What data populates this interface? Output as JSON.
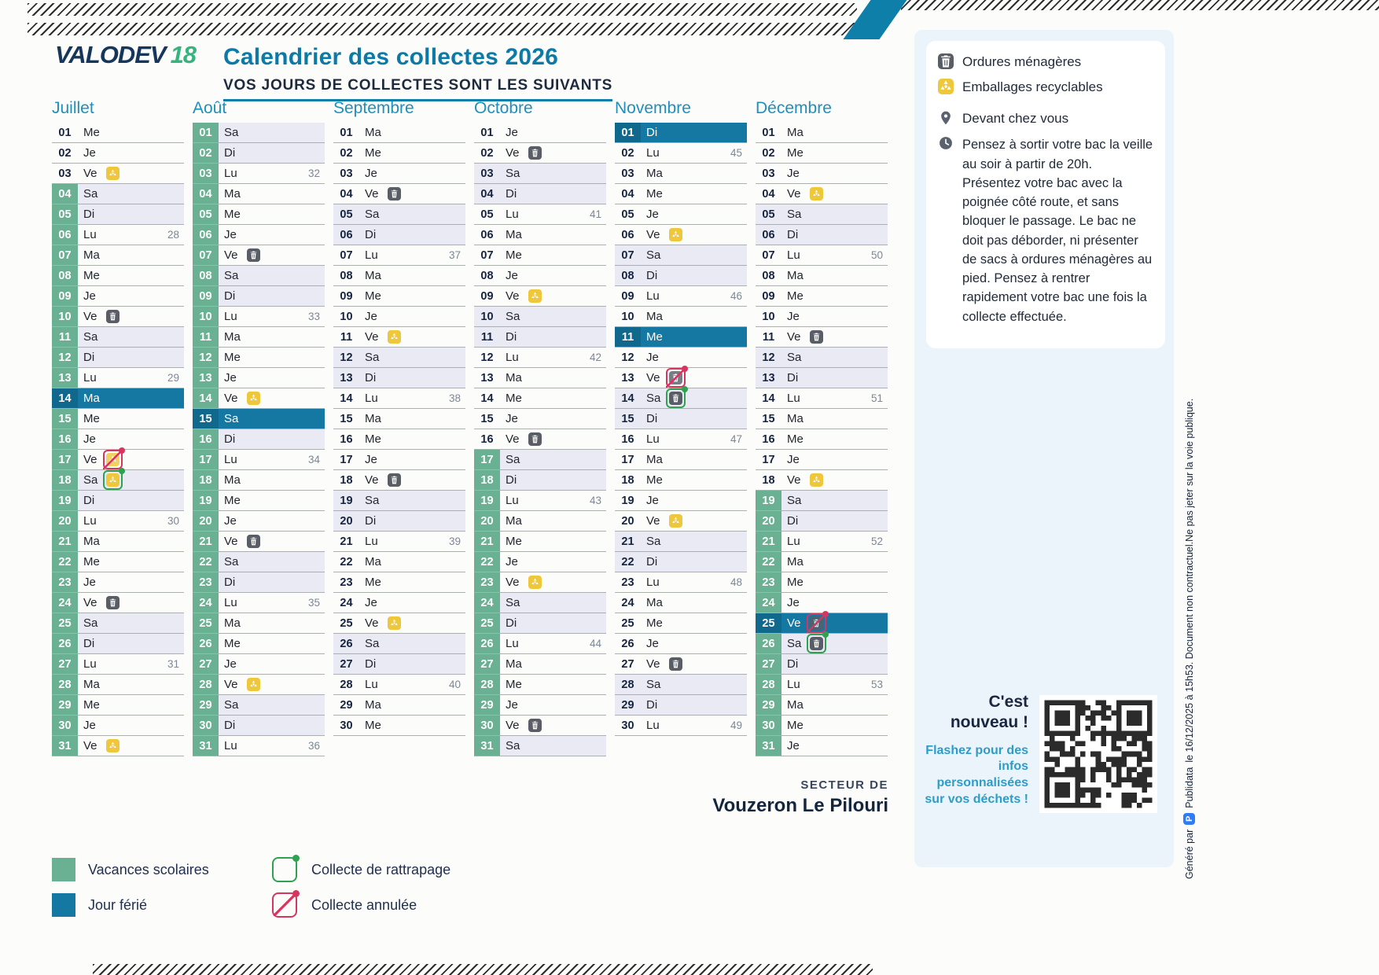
{
  "header": {
    "logo": "VALODEV",
    "logo_number": "18",
    "title": "Calendrier des collectes 2026",
    "subtitle": "VOS JOURS DE COLLECTES SONT LES SUIVANTS"
  },
  "months": [
    {
      "name": "Juillet",
      "days": [
        {
          "d": "01",
          "w": "Me"
        },
        {
          "d": "02",
          "w": "Je"
        },
        {
          "d": "03",
          "w": "Ve",
          "i": "er"
        },
        {
          "d": "04",
          "w": "Sa",
          "t": "v"
        },
        {
          "d": "05",
          "w": "Di",
          "t": "v"
        },
        {
          "d": "06",
          "w": "Lu",
          "t": "v",
          "k": "28"
        },
        {
          "d": "07",
          "w": "Ma",
          "t": "v"
        },
        {
          "d": "08",
          "w": "Me",
          "t": "v"
        },
        {
          "d": "09",
          "w": "Je",
          "t": "v"
        },
        {
          "d": "10",
          "w": "Ve",
          "t": "v",
          "i": "om"
        },
        {
          "d": "11",
          "w": "Sa",
          "t": "v"
        },
        {
          "d": "12",
          "w": "Di",
          "t": "v"
        },
        {
          "d": "13",
          "w": "Lu",
          "t": "v",
          "k": "29"
        },
        {
          "d": "14",
          "w": "Ma",
          "t": "f"
        },
        {
          "d": "15",
          "w": "Me",
          "t": "v"
        },
        {
          "d": "16",
          "w": "Je",
          "t": "v"
        },
        {
          "d": "17",
          "w": "Ve",
          "t": "v",
          "i": "er-x"
        },
        {
          "d": "18",
          "w": "Sa",
          "t": "v",
          "i": "er-r"
        },
        {
          "d": "19",
          "w": "Di",
          "t": "v"
        },
        {
          "d": "20",
          "w": "Lu",
          "t": "v",
          "k": "30"
        },
        {
          "d": "21",
          "w": "Ma",
          "t": "v"
        },
        {
          "d": "22",
          "w": "Me",
          "t": "v"
        },
        {
          "d": "23",
          "w": "Je",
          "t": "v"
        },
        {
          "d": "24",
          "w": "Ve",
          "t": "v",
          "i": "om"
        },
        {
          "d": "25",
          "w": "Sa",
          "t": "v"
        },
        {
          "d": "26",
          "w": "Di",
          "t": "v"
        },
        {
          "d": "27",
          "w": "Lu",
          "t": "v",
          "k": "31"
        },
        {
          "d": "28",
          "w": "Ma",
          "t": "v"
        },
        {
          "d": "29",
          "w": "Me",
          "t": "v"
        },
        {
          "d": "30",
          "w": "Je",
          "t": "v"
        },
        {
          "d": "31",
          "w": "Ve",
          "t": "v",
          "i": "er"
        }
      ]
    },
    {
      "name": "Août",
      "days": [
        {
          "d": "01",
          "w": "Sa",
          "t": "v"
        },
        {
          "d": "02",
          "w": "Di",
          "t": "v"
        },
        {
          "d": "03",
          "w": "Lu",
          "t": "v",
          "k": "32"
        },
        {
          "d": "04",
          "w": "Ma",
          "t": "v"
        },
        {
          "d": "05",
          "w": "Me",
          "t": "v"
        },
        {
          "d": "06",
          "w": "Je",
          "t": "v"
        },
        {
          "d": "07",
          "w": "Ve",
          "t": "v",
          "i": "om"
        },
        {
          "d": "08",
          "w": "Sa",
          "t": "v"
        },
        {
          "d": "09",
          "w": "Di",
          "t": "v"
        },
        {
          "d": "10",
          "w": "Lu",
          "t": "v",
          "k": "33"
        },
        {
          "d": "11",
          "w": "Ma",
          "t": "v"
        },
        {
          "d": "12",
          "w": "Me",
          "t": "v"
        },
        {
          "d": "13",
          "w": "Je",
          "t": "v"
        },
        {
          "d": "14",
          "w": "Ve",
          "t": "v",
          "i": "er"
        },
        {
          "d": "15",
          "w": "Sa",
          "t": "f"
        },
        {
          "d": "16",
          "w": "Di",
          "t": "v"
        },
        {
          "d": "17",
          "w": "Lu",
          "t": "v",
          "k": "34"
        },
        {
          "d": "18",
          "w": "Ma",
          "t": "v"
        },
        {
          "d": "19",
          "w": "Me",
          "t": "v"
        },
        {
          "d": "20",
          "w": "Je",
          "t": "v"
        },
        {
          "d": "21",
          "w": "Ve",
          "t": "v",
          "i": "om"
        },
        {
          "d": "22",
          "w": "Sa",
          "t": "v"
        },
        {
          "d": "23",
          "w": "Di",
          "t": "v"
        },
        {
          "d": "24",
          "w": "Lu",
          "t": "v",
          "k": "35"
        },
        {
          "d": "25",
          "w": "Ma",
          "t": "v"
        },
        {
          "d": "26",
          "w": "Me",
          "t": "v"
        },
        {
          "d": "27",
          "w": "Je",
          "t": "v"
        },
        {
          "d": "28",
          "w": "Ve",
          "t": "v",
          "i": "er"
        },
        {
          "d": "29",
          "w": "Sa",
          "t": "v"
        },
        {
          "d": "30",
          "w": "Di",
          "t": "v"
        },
        {
          "d": "31",
          "w": "Lu",
          "t": "v",
          "k": "36"
        }
      ]
    },
    {
      "name": "Septembre",
      "days": [
        {
          "d": "01",
          "w": "Ma"
        },
        {
          "d": "02",
          "w": "Me"
        },
        {
          "d": "03",
          "w": "Je"
        },
        {
          "d": "04",
          "w": "Ve",
          "i": "om"
        },
        {
          "d": "05",
          "w": "Sa"
        },
        {
          "d": "06",
          "w": "Di"
        },
        {
          "d": "07",
          "w": "Lu",
          "k": "37"
        },
        {
          "d": "08",
          "w": "Ma"
        },
        {
          "d": "09",
          "w": "Me"
        },
        {
          "d": "10",
          "w": "Je"
        },
        {
          "d": "11",
          "w": "Ve",
          "i": "er"
        },
        {
          "d": "12",
          "w": "Sa"
        },
        {
          "d": "13",
          "w": "Di"
        },
        {
          "d": "14",
          "w": "Lu",
          "k": "38"
        },
        {
          "d": "15",
          "w": "Ma"
        },
        {
          "d": "16",
          "w": "Me"
        },
        {
          "d": "17",
          "w": "Je"
        },
        {
          "d": "18",
          "w": "Ve",
          "i": "om"
        },
        {
          "d": "19",
          "w": "Sa"
        },
        {
          "d": "20",
          "w": "Di"
        },
        {
          "d": "21",
          "w": "Lu",
          "k": "39"
        },
        {
          "d": "22",
          "w": "Ma"
        },
        {
          "d": "23",
          "w": "Me"
        },
        {
          "d": "24",
          "w": "Je"
        },
        {
          "d": "25",
          "w": "Ve",
          "i": "er"
        },
        {
          "d": "26",
          "w": "Sa"
        },
        {
          "d": "27",
          "w": "Di"
        },
        {
          "d": "28",
          "w": "Lu",
          "k": "40"
        },
        {
          "d": "29",
          "w": "Ma"
        },
        {
          "d": "30",
          "w": "Me"
        }
      ]
    },
    {
      "name": "Octobre",
      "days": [
        {
          "d": "01",
          "w": "Je"
        },
        {
          "d": "02",
          "w": "Ve",
          "i": "om"
        },
        {
          "d": "03",
          "w": "Sa"
        },
        {
          "d": "04",
          "w": "Di"
        },
        {
          "d": "05",
          "w": "Lu",
          "k": "41"
        },
        {
          "d": "06",
          "w": "Ma"
        },
        {
          "d": "07",
          "w": "Me"
        },
        {
          "d": "08",
          "w": "Je"
        },
        {
          "d": "09",
          "w": "Ve",
          "i": "er"
        },
        {
          "d": "10",
          "w": "Sa"
        },
        {
          "d": "11",
          "w": "Di"
        },
        {
          "d": "12",
          "w": "Lu",
          "k": "42"
        },
        {
          "d": "13",
          "w": "Ma"
        },
        {
          "d": "14",
          "w": "Me"
        },
        {
          "d": "15",
          "w": "Je"
        },
        {
          "d": "16",
          "w": "Ve",
          "i": "om"
        },
        {
          "d": "17",
          "w": "Sa",
          "t": "v"
        },
        {
          "d": "18",
          "w": "Di",
          "t": "v"
        },
        {
          "d": "19",
          "w": "Lu",
          "t": "v",
          "k": "43"
        },
        {
          "d": "20",
          "w": "Ma",
          "t": "v"
        },
        {
          "d": "21",
          "w": "Me",
          "t": "v"
        },
        {
          "d": "22",
          "w": "Je",
          "t": "v"
        },
        {
          "d": "23",
          "w": "Ve",
          "t": "v",
          "i": "er"
        },
        {
          "d": "24",
          "w": "Sa",
          "t": "v"
        },
        {
          "d": "25",
          "w": "Di",
          "t": "v"
        },
        {
          "d": "26",
          "w": "Lu",
          "t": "v",
          "k": "44"
        },
        {
          "d": "27",
          "w": "Ma",
          "t": "v"
        },
        {
          "d": "28",
          "w": "Me",
          "t": "v"
        },
        {
          "d": "29",
          "w": "Je",
          "t": "v"
        },
        {
          "d": "30",
          "w": "Ve",
          "t": "v",
          "i": "om"
        },
        {
          "d": "31",
          "w": "Sa",
          "t": "v"
        }
      ]
    },
    {
      "name": "Novembre",
      "days": [
        {
          "d": "01",
          "w": "Di",
          "t": "f"
        },
        {
          "d": "02",
          "w": "Lu",
          "k": "45"
        },
        {
          "d": "03",
          "w": "Ma"
        },
        {
          "d": "04",
          "w": "Me"
        },
        {
          "d": "05",
          "w": "Je"
        },
        {
          "d": "06",
          "w": "Ve",
          "i": "er"
        },
        {
          "d": "07",
          "w": "Sa"
        },
        {
          "d": "08",
          "w": "Di"
        },
        {
          "d": "09",
          "w": "Lu",
          "k": "46"
        },
        {
          "d": "10",
          "w": "Ma"
        },
        {
          "d": "11",
          "w": "Me",
          "t": "f"
        },
        {
          "d": "12",
          "w": "Je"
        },
        {
          "d": "13",
          "w": "Ve",
          "i": "om-x"
        },
        {
          "d": "14",
          "w": "Sa",
          "i": "om-r"
        },
        {
          "d": "15",
          "w": "Di"
        },
        {
          "d": "16",
          "w": "Lu",
          "k": "47"
        },
        {
          "d": "17",
          "w": "Ma"
        },
        {
          "d": "18",
          "w": "Me"
        },
        {
          "d": "19",
          "w": "Je"
        },
        {
          "d": "20",
          "w": "Ve",
          "i": "er"
        },
        {
          "d": "21",
          "w": "Sa"
        },
        {
          "d": "22",
          "w": "Di"
        },
        {
          "d": "23",
          "w": "Lu",
          "k": "48"
        },
        {
          "d": "24",
          "w": "Ma"
        },
        {
          "d": "25",
          "w": "Me"
        },
        {
          "d": "26",
          "w": "Je"
        },
        {
          "d": "27",
          "w": "Ve",
          "i": "om"
        },
        {
          "d": "28",
          "w": "Sa"
        },
        {
          "d": "29",
          "w": "Di"
        },
        {
          "d": "30",
          "w": "Lu",
          "k": "49"
        }
      ]
    },
    {
      "name": "Décembre",
      "days": [
        {
          "d": "01",
          "w": "Ma"
        },
        {
          "d": "02",
          "w": "Me"
        },
        {
          "d": "03",
          "w": "Je"
        },
        {
          "d": "04",
          "w": "Ve",
          "i": "er"
        },
        {
          "d": "05",
          "w": "Sa"
        },
        {
          "d": "06",
          "w": "Di"
        },
        {
          "d": "07",
          "w": "Lu",
          "k": "50"
        },
        {
          "d": "08",
          "w": "Ma"
        },
        {
          "d": "09",
          "w": "Me"
        },
        {
          "d": "10",
          "w": "Je"
        },
        {
          "d": "11",
          "w": "Ve",
          "i": "om"
        },
        {
          "d": "12",
          "w": "Sa"
        },
        {
          "d": "13",
          "w": "Di"
        },
        {
          "d": "14",
          "w": "Lu",
          "k": "51"
        },
        {
          "d": "15",
          "w": "Ma"
        },
        {
          "d": "16",
          "w": "Me"
        },
        {
          "d": "17",
          "w": "Je"
        },
        {
          "d": "18",
          "w": "Ve",
          "i": "er"
        },
        {
          "d": "19",
          "w": "Sa",
          "t": "v"
        },
        {
          "d": "20",
          "w": "Di",
          "t": "v"
        },
        {
          "d": "21",
          "w": "Lu",
          "t": "v",
          "k": "52"
        },
        {
          "d": "22",
          "w": "Ma",
          "t": "v"
        },
        {
          "d": "23",
          "w": "Me",
          "t": "v"
        },
        {
          "d": "24",
          "w": "Je",
          "t": "v"
        },
        {
          "d": "25",
          "w": "Ve",
          "t": "f",
          "i": "om-x"
        },
        {
          "d": "26",
          "w": "Sa",
          "t": "v",
          "i": "om-r"
        },
        {
          "d": "27",
          "w": "Di",
          "t": "v"
        },
        {
          "d": "28",
          "w": "Lu",
          "t": "v",
          "k": "53"
        },
        {
          "d": "29",
          "w": "Ma",
          "t": "v"
        },
        {
          "d": "30",
          "w": "Me",
          "t": "v"
        },
        {
          "d": "31",
          "w": "Je",
          "t": "v"
        }
      ]
    }
  ],
  "legend": {
    "items": [
      {
        "type": "vacances",
        "label": "Vacances scolaires"
      },
      {
        "type": "rattrapage",
        "label": "Collecte de rattrapage"
      },
      {
        "type": "ferie",
        "label": "Jour férié"
      },
      {
        "type": "annulee",
        "label": "Collecte annulée"
      }
    ]
  },
  "sidebar": {
    "items": [
      {
        "icon": "trash-icon",
        "label": "Ordures ménagères"
      },
      {
        "icon": "recycling-icon",
        "label": "Emballages recyclables"
      }
    ],
    "location": {
      "icon": "pin-icon",
      "label": "Devant chez vous"
    },
    "note": {
      "icon": "clock-icon",
      "text": "Pensez à sortir votre bac la veille au soir à partir de 20h. Présentez votre bac avec la poignée côté route, et sans bloquer le passage. Le bac ne doit pas déborder, ni présenter de sacs à ordures ménagères au pied. Pensez à rentrer rapidement votre bac une fois la collecte effectuée."
    }
  },
  "secteur": {
    "label": "SECTEUR DE",
    "name": "Vouzeron Le Pilouri"
  },
  "promo": {
    "title": "C'est nouveau !",
    "text": "Flashez pour des infos personnalisées sur vos déchets !"
  },
  "footer": {
    "generated_by": "Généré par",
    "brand": "Publidata",
    "note": "le 16/12/2025 à 15h53. Document non contractuel.Ne pas jeter sur la voie publique."
  },
  "colors": {
    "accent_teal": "#0d7fa8",
    "month_teal": "#1f8fbc",
    "vacances_green": "#6ab093",
    "ferie_blue": "#1478a2",
    "weekend_bg": "#e9eaf3",
    "ordures_gray": "#585d66",
    "recyclables_yellow": "#eec73b",
    "annulee_red": "#d6355f",
    "rattrapage_green": "#2ea24f"
  }
}
